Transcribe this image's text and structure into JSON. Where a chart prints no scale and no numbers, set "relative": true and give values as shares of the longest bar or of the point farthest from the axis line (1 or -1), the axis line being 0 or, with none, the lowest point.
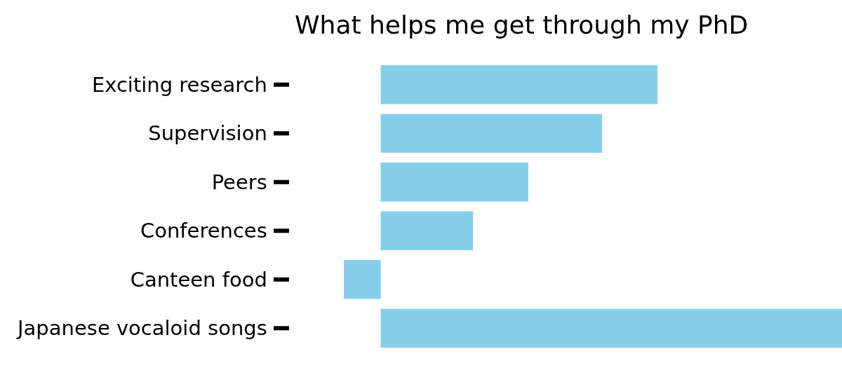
{
  "chart_data": {
    "type": "bar",
    "orientation": "horizontal",
    "relative": true,
    "title": "What helps me get through my PhD",
    "categories": [
      "Exciting research",
      "Supervision",
      "Peers",
      "Conferences",
      "Canteen food",
      "Japanese vocaloid songs"
    ],
    "values": [
      0.6,
      0.48,
      0.32,
      0.2,
      -0.08,
      1
    ],
    "color": "#87ceeb"
  }
}
